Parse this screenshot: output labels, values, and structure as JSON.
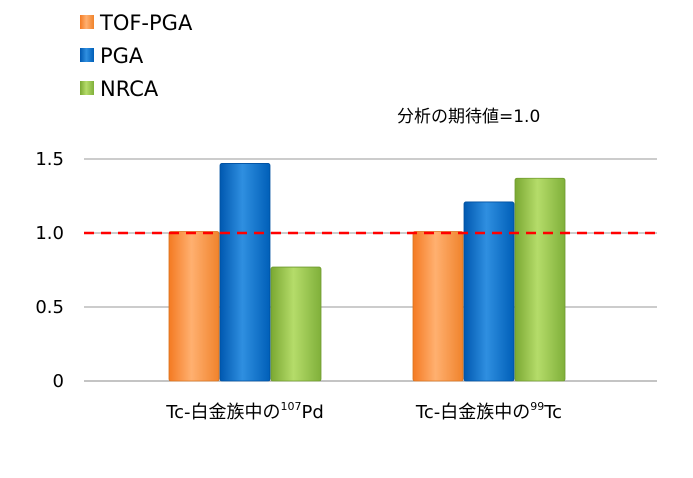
{
  "chart_data": {
    "type": "bar",
    "title": "",
    "annotation": "分析の期待値=1.0",
    "categories": [
      {
        "main": "Tc-白金族中の",
        "sup": "107",
        "tail": "Pd"
      },
      {
        "main": "Tc-白金族中の",
        "sup": "99",
        "tail": "Tc"
      }
    ],
    "series": [
      {
        "name": "TOF-PGA",
        "color": "#f79646",
        "values": [
          1.01,
          1.01
        ]
      },
      {
        "name": "PGA",
        "color": "#0070c0",
        "values": [
          1.47,
          1.21
        ]
      },
      {
        "name": "NRCA",
        "color": "#92c047",
        "values": [
          0.77,
          1.37
        ]
      }
    ],
    "ylim": [
      0,
      1.5
    ],
    "yticks": [
      "0",
      "0.5",
      "1.0",
      "1.5"
    ],
    "reference_line": {
      "value": 1.0,
      "color": "#ff0000",
      "style": "dashed"
    },
    "grid": true,
    "legend_position": "top-left",
    "xlabel": "",
    "ylabel": ""
  }
}
